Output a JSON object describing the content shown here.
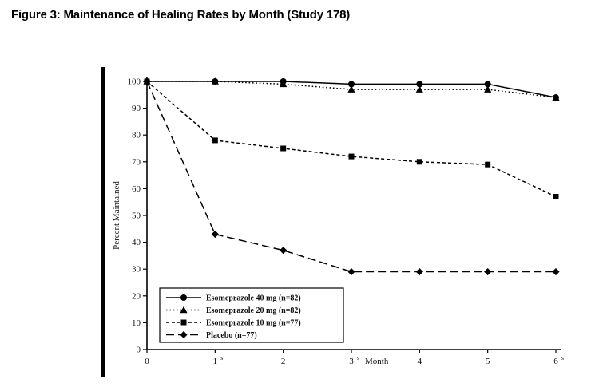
{
  "figure": {
    "title": "Figure 3: Maintenance of Healing Rates by Month (Study 178)"
  },
  "chart_data": {
    "type": "line",
    "title": "Maintenance of Healing Rates by Month (Study 178)",
    "xlabel": "Month",
    "ylabel": "Percent Maintained",
    "x": [
      0,
      1,
      2,
      3,
      4,
      5,
      6
    ],
    "xticks": [
      0,
      1,
      2,
      3,
      4,
      5,
      6
    ],
    "x_superscript_ticks": {
      "1": "s",
      "3": "s",
      "6": "s"
    },
    "ylim": [
      0,
      100
    ],
    "yticks": [
      0,
      10,
      20,
      30,
      40,
      50,
      60,
      70,
      80,
      90,
      100
    ],
    "grid": false,
    "legend_position": "lower-left",
    "line_color": "#000000",
    "series": [
      {
        "name": "Esomeprazole 40 mg (n=82)",
        "marker": "circle",
        "dash": "solid",
        "values": [
          100,
          100,
          100,
          99,
          99,
          99,
          94
        ]
      },
      {
        "name": "Esomeprazole 20 mg (n=82)",
        "marker": "triangle",
        "dash": "dots",
        "values": [
          100,
          100,
          99,
          97,
          97,
          97,
          94
        ]
      },
      {
        "name": "Esomeprazole 10 mg (n=77)",
        "marker": "square",
        "dash": "dashes",
        "values": [
          100,
          78,
          75,
          72,
          70,
          69,
          57
        ]
      },
      {
        "name": "Placebo (n=77)",
        "marker": "diamond",
        "dash": "long-dashes",
        "values": [
          100,
          43,
          37,
          29,
          29,
          29,
          29
        ]
      }
    ]
  }
}
